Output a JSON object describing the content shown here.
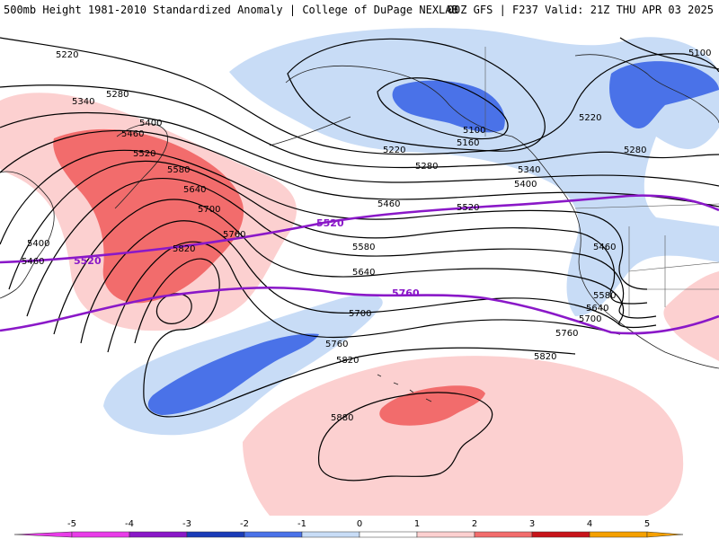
{
  "header": {
    "left": "500mb Height 1981-2010 Standardized Anomaly | College of DuPage NEXLAB",
    "right": "00Z GFS | F237 Valid: 21Z THU APR 03 2025"
  },
  "colors": {
    "neg3": "#4a72e8",
    "neg1": "#c8dcf6",
    "pos1": "#fcd0d0",
    "pos2": "#f26c6c",
    "highlight_contour": "#8a18c8"
  },
  "contour_labels": [
    {
      "text": "5220"
    },
    {
      "text": "5280"
    },
    {
      "text": "5340"
    },
    {
      "text": "5400"
    },
    {
      "text": "5460"
    },
    {
      "text": "5520"
    },
    {
      "text": "5580"
    },
    {
      "text": "5640"
    },
    {
      "text": "5700"
    },
    {
      "text": "5760"
    },
    {
      "text": "5820"
    },
    {
      "text": "5400"
    },
    {
      "text": "5460"
    },
    {
      "text": "5100"
    },
    {
      "text": "5160"
    },
    {
      "text": "5220"
    },
    {
      "text": "5280"
    },
    {
      "text": "5340"
    },
    {
      "text": "5400"
    },
    {
      "text": "5460"
    },
    {
      "text": "5520"
    },
    {
      "text": "5580"
    },
    {
      "text": "5640"
    },
    {
      "text": "5700"
    },
    {
      "text": "5760"
    },
    {
      "text": "5820"
    },
    {
      "text": "5100"
    },
    {
      "text": "5220"
    },
    {
      "text": "5280"
    },
    {
      "text": "5460"
    },
    {
      "text": "5580"
    },
    {
      "text": "5640"
    },
    {
      "text": "5700"
    },
    {
      "text": "5760"
    },
    {
      "text": "5820"
    },
    {
      "text": "5880"
    }
  ],
  "highlight_labels": [
    {
      "text": "5520"
    },
    {
      "text": "5520"
    },
    {
      "text": "5760"
    }
  ],
  "legend": {
    "ticks": [
      "-5",
      "-4",
      "-3",
      "-2",
      "-1",
      "0",
      "1",
      "2",
      "3",
      "4",
      "5"
    ],
    "colors": [
      "#e83ce8",
      "#8a18c8",
      "#1a3cb8",
      "#4a72e8",
      "#c8dcf6",
      "#ffffff",
      "#fcd0d0",
      "#f26c6c",
      "#c8141a",
      "#f5a000"
    ]
  }
}
